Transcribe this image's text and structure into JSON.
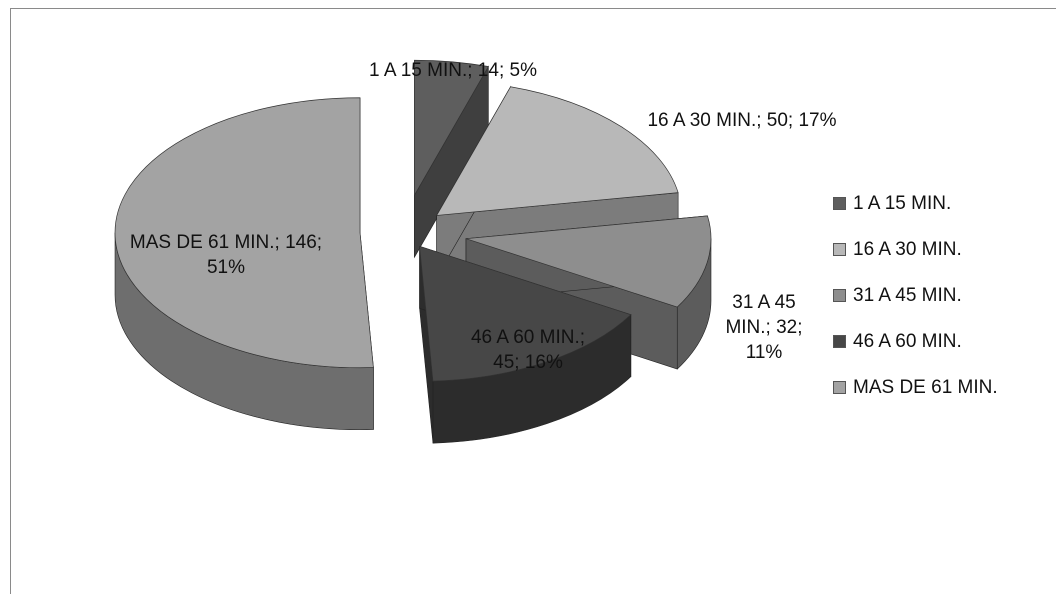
{
  "chart_data": {
    "type": "pie",
    "title": "",
    "categories": [
      "1 A 15 MIN.",
      "16 A 30 MIN.",
      "31 A 45 MIN.",
      "46 A 60 MIN.",
      "MAS DE 61 MIN."
    ],
    "values": [
      14,
      50,
      32,
      45,
      146
    ],
    "percents": [
      "5%",
      "17%",
      "11%",
      "16%",
      "51%"
    ],
    "data_labels": [
      "1 A 15 MIN.; 14; 5%",
      "16 A 30 MIN.; 50; 17%",
      "31 A 45 MIN.; 32; 11%",
      "46 A 60 MIN.; 45; 16%",
      "MAS DE 61 MIN.; 146; 51%"
    ],
    "colors": [
      "#5e5e5e",
      "#b8b8b8",
      "#8e8e8e",
      "#474747",
      "#a3a3a3"
    ],
    "side_colors": [
      "#3f3f3f",
      "#7c7c7c",
      "#5c5c5c",
      "#2c2c2c",
      "#6e6e6e"
    ],
    "legend_position": "right",
    "exploded": true,
    "three_d": true
  },
  "legend": {
    "items": [
      "1 A 15 MIN.",
      "16 A 30 MIN.",
      "31 A 45 MIN.",
      "46 A 60 MIN.",
      "MAS DE 61 MIN."
    ]
  }
}
